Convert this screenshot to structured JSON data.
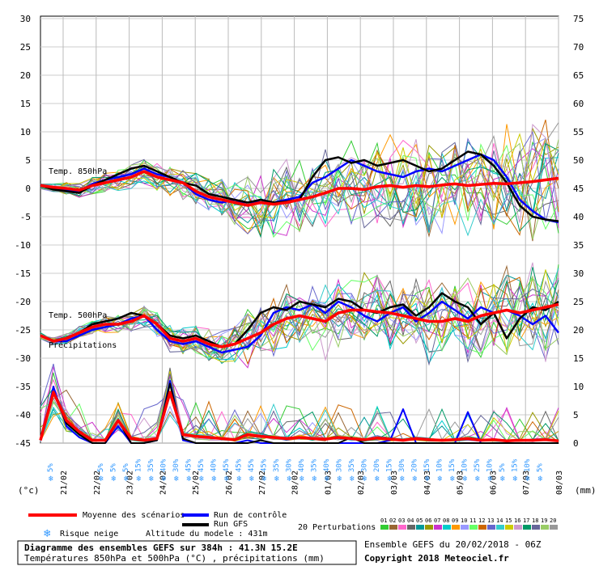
{
  "chart_data": {
    "type": "line",
    "left_axis": {
      "unit": "(°c)",
      "ticks": [
        30,
        25,
        20,
        15,
        10,
        5,
        0,
        -5,
        -10,
        -15,
        -20,
        -25,
        -30,
        -35,
        -40,
        -45
      ],
      "range": [
        -45,
        30
      ]
    },
    "right_axis": {
      "unit": "(mm)",
      "ticks": [
        75,
        70,
        65,
        60,
        55,
        50,
        45,
        40,
        35,
        30,
        25,
        20,
        15,
        10,
        5,
        0
      ],
      "range": [
        0,
        75
      ]
    },
    "x_dates": [
      "21/02",
      "22/02",
      "23/02",
      "24/02",
      "25/02",
      "26/02",
      "27/02",
      "28/02",
      "01/03",
      "02/03",
      "03/03",
      "04/03",
      "05/03",
      "06/03",
      "07/03",
      "08/03"
    ],
    "labels": {
      "temp850": "Temp. 850hPa",
      "temp500": "Temp. 500hPa",
      "precip": "Précipitations"
    },
    "series_850": {
      "mean": [
        0.5,
        0.2,
        0.0,
        -0.3,
        0.5,
        1.0,
        1.5,
        2.0,
        3.0,
        2.0,
        1.5,
        1.0,
        -0.5,
        -1.5,
        -2.0,
        -2.5,
        -3.0,
        -2.5,
        -2.8,
        -2.5,
        -2.0,
        -1.5,
        -0.8,
        0.0,
        0.0,
        -0.2,
        0.3,
        0.5,
        0.2,
        0.5,
        0.3,
        0.6,
        0.8,
        0.5,
        0.7,
        0.9,
        0.8,
        1.0,
        1.2,
        1.5,
        1.8
      ],
      "control": [
        0.5,
        0.0,
        -0.3,
        -0.5,
        0.8,
        1.5,
        2.0,
        2.5,
        3.5,
        2.5,
        2.0,
        1.0,
        -1.0,
        -2.0,
        -2.5,
        -2.0,
        -3.0,
        -2.0,
        -2.5,
        -2.0,
        -1.5,
        1.0,
        2.0,
        3.5,
        5.0,
        4.0,
        3.0,
        2.5,
        2.0,
        3.0,
        3.5,
        3.0,
        4.0,
        5.0,
        6.0,
        5.0,
        2.0,
        -2.0,
        -4.0,
        -5.5,
        -6.0
      ],
      "gfs": [
        0.5,
        -0.2,
        -0.5,
        -0.8,
        0.5,
        1.5,
        2.5,
        3.5,
        4.0,
        3.0,
        2.0,
        1.0,
        0.5,
        -1.0,
        -1.5,
        -2.0,
        -2.5,
        -2.0,
        -2.5,
        -2.3,
        -2.0,
        2.0,
        5.0,
        5.5,
        4.5,
        5.0,
        4.0,
        4.5,
        5.0,
        4.0,
        3.0,
        3.5,
        5.0,
        6.5,
        6.0,
        4.0,
        1.0,
        -3.0,
        -5.0,
        -5.5,
        -5.8
      ]
    },
    "series_500": {
      "mean": [
        -26.0,
        -27.0,
        -26.5,
        -25.5,
        -24.5,
        -24.0,
        -24.0,
        -23.5,
        -22.5,
        -24.0,
        -26.5,
        -27.0,
        -26.5,
        -27.5,
        -28.0,
        -27.5,
        -26.5,
        -25.5,
        -24.0,
        -23.0,
        -22.5,
        -23.0,
        -23.5,
        -22.0,
        -21.5,
        -21.5,
        -21.8,
        -22.0,
        -22.5,
        -23.0,
        -23.5,
        -23.5,
        -23.0,
        -23.5,
        -22.5,
        -22.0,
        -21.5,
        -22.0,
        -21.5,
        -21.0,
        -20.5
      ],
      "control": [
        -26.0,
        -27.0,
        -27.0,
        -26.0,
        -25.0,
        -24.5,
        -24.0,
        -23.0,
        -22.5,
        -25.0,
        -27.0,
        -27.5,
        -27.0,
        -28.0,
        -29.0,
        -28.5,
        -28.0,
        -26.0,
        -22.0,
        -21.0,
        -21.5,
        -20.5,
        -22.0,
        -20.0,
        -21.0,
        -22.5,
        -23.5,
        -22.0,
        -21.0,
        -23.5,
        -22.0,
        -20.0,
        -21.5,
        -23.0,
        -21.0,
        -22.0,
        -21.5,
        -22.5,
        -24.0,
        -22.5,
        -25.5
      ],
      "gfs": [
        -26.0,
        -27.0,
        -26.5,
        -25.5,
        -24.0,
        -23.5,
        -23.0,
        -22.0,
        -22.5,
        -24.0,
        -26.0,
        -26.5,
        -26.0,
        -27.0,
        -28.0,
        -27.5,
        -25.0,
        -22.0,
        -21.0,
        -21.5,
        -20.0,
        -20.5,
        -21.0,
        -19.5,
        -20.0,
        -21.5,
        -22.0,
        -21.0,
        -20.5,
        -22.5,
        -21.0,
        -18.5,
        -20.0,
        -21.0,
        -24.0,
        -22.0,
        -26.5,
        -23.0,
        -21.0,
        -21.5,
        -20.0
      ]
    },
    "series_precip_mm": {
      "mean": [
        0.5,
        9.0,
        4.0,
        2.0,
        0.5,
        0.5,
        4.0,
        0.8,
        0.5,
        0.8,
        9.0,
        1.5,
        1.2,
        1.0,
        0.8,
        0.6,
        1.5,
        1.2,
        1.0,
        0.8,
        1.0,
        0.8,
        0.7,
        1.0,
        0.8,
        0.6,
        0.9,
        0.7,
        0.5,
        0.8,
        0.6,
        0.5,
        0.6,
        0.8,
        0.5,
        0.6,
        0.4,
        0.5,
        0.5,
        0.6,
        0.4
      ],
      "control": [
        0.5,
        10.0,
        3.0,
        1.0,
        0.0,
        0.0,
        3.0,
        0.0,
        0.0,
        0.5,
        11.0,
        0.5,
        0.0,
        0.0,
        0.0,
        0.0,
        0.5,
        0.0,
        0.0,
        0.0,
        0.0,
        0.0,
        0.0,
        0.0,
        0.0,
        0.0,
        0.0,
        0.5,
        6.0,
        0.0,
        0.0,
        0.0,
        0.0,
        5.5,
        0.0,
        0.0,
        0.0,
        0.0,
        0.0,
        0.0,
        0.0
      ],
      "gfs": [
        0.5,
        9.0,
        3.5,
        1.5,
        0.0,
        0.0,
        4.0,
        0.0,
        0.0,
        0.5,
        10.5,
        0.8,
        0.0,
        0.0,
        0.0,
        0.0,
        0.0,
        0.5,
        0.0,
        0.0,
        0.0,
        0.0,
        0.0,
        0.0,
        1.0,
        0.0,
        0.0,
        0.0,
        0.0,
        0.0,
        0.0,
        0.0,
        0.0,
        0.0,
        0.0,
        0.0,
        0.0,
        0.0,
        0.0,
        0.0,
        0.0
      ]
    },
    "snow_risk": [
      "5%",
      "",
      "",
      "",
      "5%",
      "5%",
      "5%",
      "15%",
      "35%",
      "40%",
      "30%",
      "45%",
      "45%",
      "40%",
      "45%",
      "45%",
      "45%",
      "45%",
      "35%",
      "30%",
      "40%",
      "35%",
      "40%",
      "30%",
      "35%",
      "30%",
      "20%",
      "15%",
      "30%",
      "20%",
      "15%",
      "10%",
      "15%",
      "10%",
      "25%",
      "10%",
      "5%",
      "15%",
      "10%",
      "5%"
    ],
    "perturbation_colors": [
      "#33cc33",
      "#996633",
      "#ff66cc",
      "#666666",
      "#009999",
      "#999900",
      "#cc33cc",
      "#00cccc",
      "#ff9900",
      "#9999ff",
      "#66ff66",
      "#cc6600",
      "#6666cc",
      "#33cccc",
      "#cccc00",
      "#cc99cc",
      "#009966",
      "#666699",
      "#99cc66",
      "#999999"
    ],
    "perturbation_labels": [
      "01",
      "02",
      "03",
      "04",
      "05",
      "06",
      "07",
      "08",
      "09",
      "10",
      "11",
      "12",
      "13",
      "14",
      "15",
      "16",
      "17",
      "18",
      "19",
      "20"
    ]
  },
  "legend": {
    "mean": "Moyenne des scénarios",
    "control": "Run de contrôle",
    "gfs": "Run GFS",
    "perturbations": "20 Perturbations",
    "snow": "Risque neige",
    "altitude": "Altitude du modele : 431m",
    "mean_color": "#ff0000",
    "control_color": "#0000ff",
    "gfs_color": "#000000"
  },
  "footer": {
    "title": "Diagramme des ensembles GEFS sur 384h : 41.3N 15.2E",
    "subtitle": "Températures 850hPa et 500hPa (°C) , précipitations (mm)",
    "ensemble": "Ensemble GEFS du 20/02/2018 - 06Z",
    "copyright": "Copyright 2018 Meteociel.fr"
  }
}
